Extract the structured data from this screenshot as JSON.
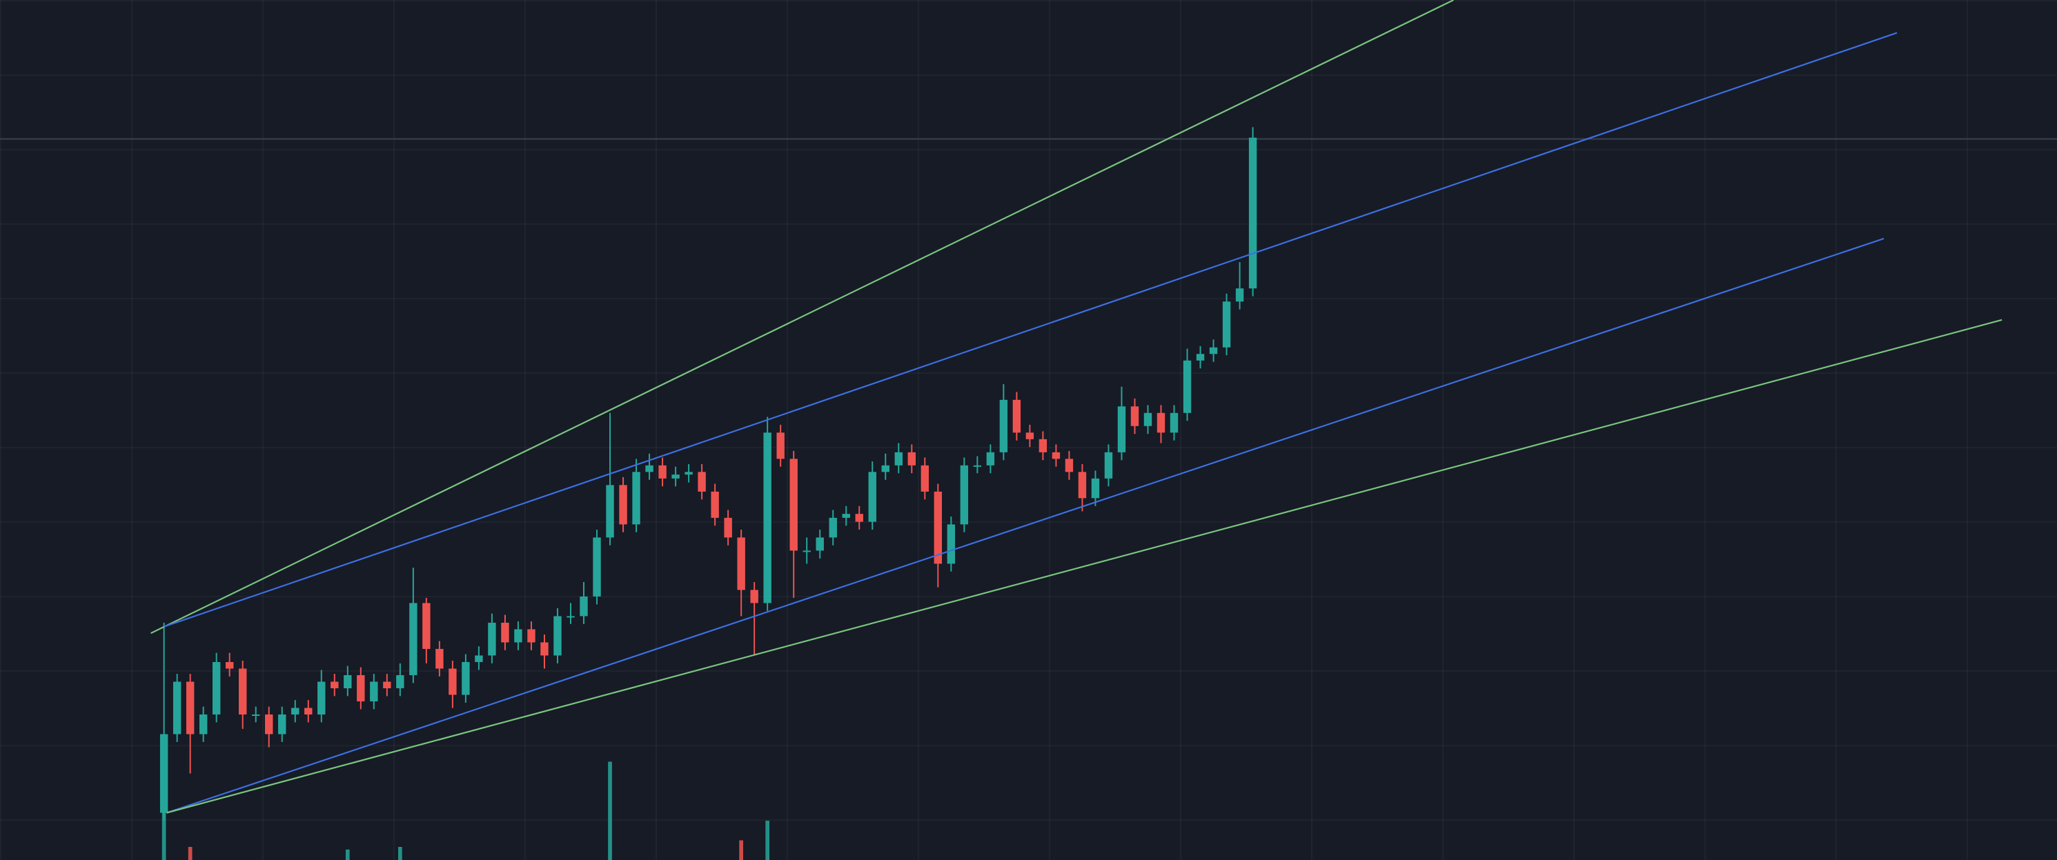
{
  "chart_data": {
    "type": "candlestick",
    "up_color": "#26a69a",
    "down_color": "#ef5350",
    "xlim": [
      -12.5,
      144.3
    ],
    "ylim": [
      0,
      656
    ],
    "open": [
      36,
      96,
      136,
      96,
      111,
      151,
      146,
      111,
      111,
      96,
      111,
      116,
      111,
      136,
      131,
      141,
      121,
      136,
      131,
      141,
      196,
      161,
      146,
      126,
      151,
      156,
      181,
      166,
      176,
      166,
      156,
      186,
      186,
      201,
      246,
      286,
      256,
      296,
      301,
      291,
      294,
      296,
      281,
      261,
      246,
      206,
      196,
      326,
      306,
      236,
      236,
      246,
      261,
      264,
      258,
      296,
      301,
      311,
      301,
      281,
      226,
      256,
      301,
      301,
      311,
      351,
      326,
      321,
      311,
      306,
      296,
      276,
      291,
      311,
      346,
      331,
      341,
      326,
      341,
      381,
      386,
      391,
      426,
      436
    ],
    "high": [
      181,
      142,
      142,
      117,
      158,
      158,
      152,
      117,
      117,
      117,
      122,
      122,
      145,
      142,
      148,
      147,
      142,
      142,
      150,
      223,
      200,
      167,
      152,
      157,
      163,
      188,
      187,
      182,
      182,
      172,
      192,
      196,
      212,
      252,
      341,
      292,
      306,
      310,
      307,
      300,
      302,
      302,
      287,
      267,
      252,
      212,
      338,
      332,
      312,
      246,
      252,
      267,
      270,
      270,
      304,
      310,
      318,
      317,
      307,
      287,
      262,
      307,
      308,
      317,
      363,
      357,
      332,
      327,
      317,
      312,
      302,
      297,
      317,
      361,
      352,
      347,
      347,
      347,
      390,
      392,
      397,
      432,
      456,
      559
    ],
    "low": [
      30,
      90,
      66,
      90,
      105,
      140,
      100,
      105,
      86,
      90,
      105,
      105,
      105,
      125,
      125,
      115,
      115,
      125,
      125,
      135,
      150,
      140,
      116,
      120,
      145,
      150,
      160,
      160,
      160,
      146,
      150,
      180,
      180,
      195,
      240,
      250,
      250,
      290,
      285,
      285,
      288,
      275,
      255,
      240,
      186,
      156,
      190,
      300,
      200,
      226,
      230,
      240,
      255,
      252,
      252,
      290,
      295,
      295,
      275,
      208,
      220,
      250,
      295,
      295,
      305,
      320,
      315,
      305,
      300,
      290,
      266,
      270,
      285,
      305,
      325,
      325,
      318,
      320,
      335,
      375,
      380,
      385,
      420,
      430
    ],
    "close": [
      96,
      136,
      96,
      111,
      151,
      146,
      111,
      111,
      96,
      111,
      116,
      111,
      136,
      131,
      141,
      121,
      136,
      131,
      141,
      196,
      161,
      146,
      126,
      151,
      156,
      181,
      166,
      176,
      166,
      156,
      186,
      186,
      201,
      246,
      286,
      256,
      296,
      301,
      291,
      294,
      296,
      281,
      261,
      246,
      206,
      196,
      326,
      306,
      236,
      236,
      246,
      261,
      264,
      258,
      296,
      301,
      311,
      301,
      281,
      226,
      256,
      301,
      301,
      311,
      351,
      326,
      321,
      311,
      306,
      296,
      276,
      291,
      311,
      346,
      331,
      341,
      326,
      341,
      381,
      386,
      391,
      426,
      436,
      551
    ],
    "volume": [
      40,
      0,
      10,
      0,
      0,
      0,
      0,
      0,
      0,
      0,
      0,
      0,
      0,
      0,
      8,
      0,
      0,
      0,
      10,
      0,
      0,
      0,
      0,
      0,
      0,
      0,
      0,
      0,
      0,
      0,
      0,
      0,
      0,
      0,
      75,
      0,
      0,
      0,
      0,
      0,
      0,
      0,
      0,
      0,
      15,
      0,
      30,
      0,
      0,
      0,
      0,
      0,
      0,
      0,
      0,
      0,
      0,
      0,
      0,
      0,
      0,
      0,
      0,
      0,
      0,
      0,
      0,
      0,
      0,
      0,
      0,
      0,
      0,
      0,
      0,
      0,
      0,
      0,
      0,
      0,
      0,
      0,
      0,
      0
    ],
    "price_line": 550,
    "trend_lines": [
      {
        "color": "#7bc47f",
        "x": [
          -1.0,
          98.3
        ],
        "y": [
          173,
          656
        ]
      },
      {
        "color": "#3d6fe0",
        "x": [
          0,
          132.1
        ],
        "y": [
          178,
          631
        ]
      },
      {
        "color": "#3d6fe0",
        "x": [
          0.2,
          131.1
        ],
        "y": [
          36,
          474
        ]
      },
      {
        "color": "#7bc47f",
        "x": [
          0.2,
          140.1
        ],
        "y": [
          36,
          412
        ]
      }
    ]
  }
}
